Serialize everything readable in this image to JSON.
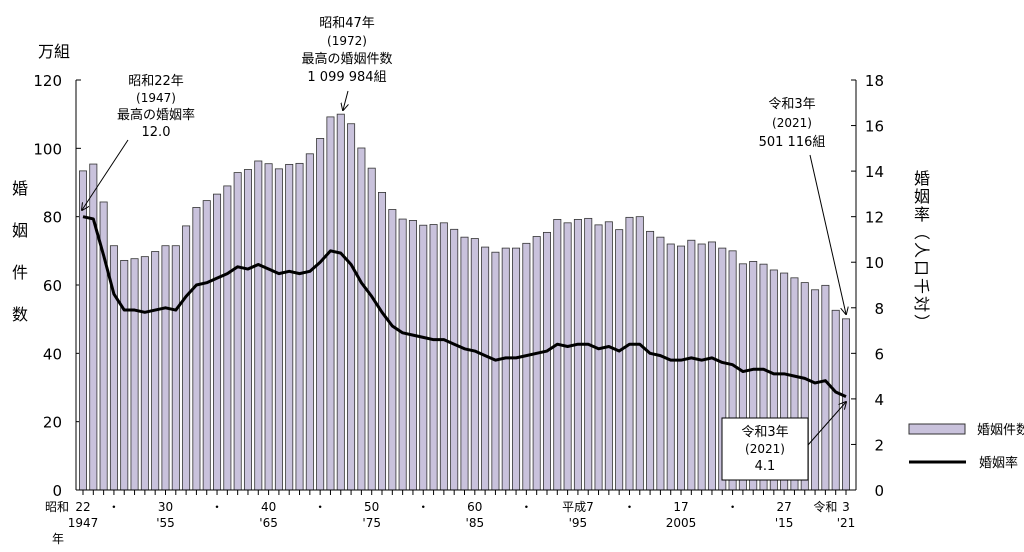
{
  "chart_data": {
    "type": "bar+line",
    "left_unit": "万組",
    "left_axis_label": [
      "婚",
      "姻",
      "件",
      "数"
    ],
    "right_axis_label": [
      "婚",
      "姻",
      "率",
      "（",
      "人",
      "口",
      "千",
      "対",
      "）"
    ],
    "ylim_left": [
      0,
      120
    ],
    "yticks_left": [
      0,
      20,
      40,
      60,
      80,
      100,
      120
    ],
    "ylim_right": [
      0,
      18
    ],
    "yticks_right": [
      0,
      2,
      4,
      6,
      8,
      10,
      12,
      14,
      16,
      18
    ],
    "years": [
      1947,
      1948,
      1949,
      1950,
      1951,
      1952,
      1953,
      1954,
      1955,
      1956,
      1957,
      1958,
      1959,
      1960,
      1961,
      1962,
      1963,
      1964,
      1965,
      1966,
      1967,
      1968,
      1969,
      1970,
      1971,
      1972,
      1973,
      1974,
      1975,
      1976,
      1977,
      1978,
      1979,
      1980,
      1981,
      1982,
      1983,
      1984,
      1985,
      1986,
      1987,
      1988,
      1989,
      1990,
      1991,
      1992,
      1993,
      1994,
      1995,
      1996,
      1997,
      1998,
      1999,
      2000,
      2001,
      2002,
      2003,
      2004,
      2005,
      2006,
      2007,
      2008,
      2009,
      2010,
      2011,
      2012,
      2013,
      2014,
      2015,
      2016,
      2017,
      2018,
      2019,
      2020,
      2021
    ],
    "series": [
      {
        "name": "婚姻件数",
        "type": "bar",
        "axis": "left",
        "color": "#c9c2dc",
        "values": [
          93.4,
          95.4,
          84.3,
          71.5,
          67.2,
          67.7,
          68.3,
          69.8,
          71.5,
          71.5,
          77.3,
          82.7,
          84.7,
          86.6,
          89.0,
          92.9,
          93.8,
          96.3,
          95.5,
          94.0,
          95.3,
          95.6,
          98.4,
          102.9,
          109.2,
          110.0,
          107.2,
          100.1,
          94.2,
          87.1,
          82.1,
          79.3,
          78.9,
          77.5,
          77.7,
          78.2,
          76.3,
          74.0,
          73.6,
          71.1,
          69.6,
          70.8,
          70.8,
          72.2,
          74.2,
          75.4,
          79.2,
          78.2,
          79.2,
          79.5,
          77.6,
          78.5,
          76.2,
          79.8,
          80.0,
          75.7,
          74.0,
          72.0,
          71.4,
          73.1,
          72.0,
          72.6,
          70.8,
          70.0,
          66.2,
          66.9,
          66.1,
          64.4,
          63.5,
          62.1,
          60.7,
          58.6,
          59.9,
          52.6,
          50.1
        ]
      },
      {
        "name": "婚姻率",
        "type": "line",
        "axis": "right",
        "color": "#000000",
        "values": [
          12.0,
          11.9,
          10.3,
          8.6,
          7.9,
          7.9,
          7.8,
          7.9,
          8.0,
          7.9,
          8.5,
          9.0,
          9.1,
          9.3,
          9.5,
          9.8,
          9.7,
          9.9,
          9.7,
          9.5,
          9.6,
          9.5,
          9.6,
          10.0,
          10.5,
          10.4,
          9.9,
          9.1,
          8.5,
          7.8,
          7.2,
          6.9,
          6.8,
          6.7,
          6.6,
          6.6,
          6.4,
          6.2,
          6.1,
          5.9,
          5.7,
          5.8,
          5.8,
          5.9,
          6.0,
          6.1,
          6.4,
          6.3,
          6.4,
          6.4,
          6.2,
          6.3,
          6.1,
          6.4,
          6.4,
          6.0,
          5.9,
          5.7,
          5.7,
          5.8,
          5.7,
          5.8,
          5.6,
          5.5,
          5.2,
          5.3,
          5.3,
          5.1,
          5.1,
          5.0,
          4.9,
          4.7,
          4.8,
          4.3,
          4.1
        ]
      }
    ],
    "x_ticks_top": [
      {
        "year": 1947,
        "label": "22"
      },
      {
        "year": 1950,
        "label": "・"
      },
      {
        "year": 1955,
        "label": "30"
      },
      {
        "year": 1960,
        "label": "・"
      },
      {
        "year": 1965,
        "label": "40"
      },
      {
        "year": 1970,
        "label": "・"
      },
      {
        "year": 1975,
        "label": "50"
      },
      {
        "year": 1980,
        "label": "・"
      },
      {
        "year": 1985,
        "label": "60"
      },
      {
        "year": 1990,
        "label": "・"
      },
      {
        "year": 1995,
        "label": "平成7"
      },
      {
        "year": 2000,
        "label": "・"
      },
      {
        "year": 2005,
        "label": "17"
      },
      {
        "year": 2010,
        "label": "・"
      },
      {
        "year": 2015,
        "label": "27"
      },
      {
        "year": 2019,
        "label": "令和"
      },
      {
        "year": 2021,
        "label": "3"
      }
    ],
    "x_ticks_bottom": [
      {
        "year": 1947,
        "label": "1947"
      },
      {
        "year": 1955,
        "label": "'55"
      },
      {
        "year": 1965,
        "label": "'65"
      },
      {
        "year": 1975,
        "label": "'75"
      },
      {
        "year": 1985,
        "label": "'85"
      },
      {
        "year": 1995,
        "label": "'95"
      },
      {
        "year": 2005,
        "label": "2005"
      },
      {
        "year": 2015,
        "label": "'15"
      },
      {
        "year": 2021,
        "label": "'21"
      }
    ],
    "era_label": "昭和",
    "year_label": "年",
    "annotations": {
      "max_rate": [
        "昭和22年",
        "(1947)",
        "最高の婚姻率",
        "12.0"
      ],
      "max_count": [
        "昭和47年",
        "(1972)",
        "最高の婚姻件数",
        "1 099 984組"
      ],
      "latest_count": [
        "令和3年",
        "(2021)",
        "501 116組"
      ],
      "latest_rate": [
        "令和3年",
        "(2021)",
        "4.1"
      ]
    },
    "legend": {
      "position": "bottom-right",
      "items": [
        "婚姻件数",
        "婚姻率"
      ]
    }
  }
}
